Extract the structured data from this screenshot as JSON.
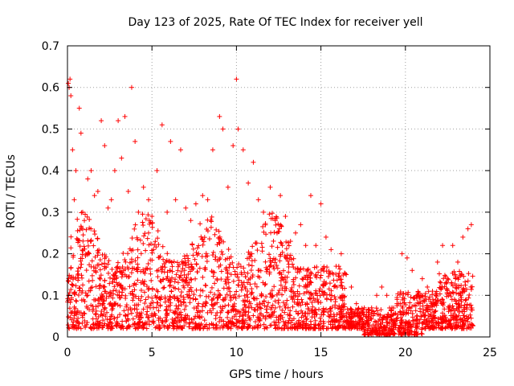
{
  "chart_data": {
    "type": "scatter",
    "title": "Day 123 of 2025, Rate Of TEC Index for receiver yell",
    "xlabel": "GPS time / hours",
    "ylabel": "ROTI / TECUs",
    "xlim": [
      0,
      25
    ],
    "ylim": [
      0,
      0.7
    ],
    "xticks": [
      0,
      5,
      10,
      15,
      20,
      25
    ],
    "xtick_labels": [
      "0",
      "5",
      "10",
      "15",
      "20",
      "25"
    ],
    "yticks": [
      0,
      0.1,
      0.2,
      0.3,
      0.4,
      0.5,
      0.6,
      0.7
    ],
    "ytick_labels": [
      "0",
      "0.1",
      "0.2",
      "0.3",
      "0.4",
      "0.5",
      "0.6",
      "0.7"
    ],
    "grid": true,
    "marker": "plus",
    "color": "#ff0000",
    "series": [
      {
        "name": "ROTI",
        "x": [
          0.05,
          0.1,
          0.15,
          0.2,
          0.3,
          0.4,
          0.5,
          0.7,
          0.8,
          0.9,
          1.0,
          1.2,
          1.4,
          1.6,
          1.8,
          2.0,
          2.2,
          2.4,
          2.6,
          2.8,
          3.0,
          3.2,
          3.4,
          3.6,
          3.8,
          4.0,
          4.2,
          4.5,
          4.8,
          5.0,
          5.3,
          5.6,
          5.9,
          6.1,
          6.4,
          6.7,
          7.0,
          7.3,
          7.6,
          8.0,
          8.3,
          8.6,
          9.0,
          9.2,
          9.5,
          9.8,
          10.0,
          10.1,
          10.4,
          10.7,
          11.0,
          11.3,
          11.6,
          12.0,
          12.3,
          12.6,
          12.9,
          13.2,
          13.5,
          13.8,
          14.1,
          14.4,
          14.7,
          15.0,
          15.3,
          15.6,
          15.9,
          16.2,
          16.5,
          16.8,
          17.1,
          17.4,
          17.7,
          18.0,
          18.3,
          18.6,
          18.9,
          19.2,
          19.5,
          19.8,
          20.1,
          20.4,
          20.7,
          21.0,
          21.3,
          21.6,
          21.9,
          22.2,
          22.5,
          22.8,
          23.1,
          23.4,
          23.7,
          23.9
        ],
        "y": [
          0.61,
          0.6,
          0.62,
          0.58,
          0.45,
          0.33,
          0.4,
          0.55,
          0.49,
          0.3,
          0.28,
          0.38,
          0.4,
          0.34,
          0.35,
          0.52,
          0.46,
          0.31,
          0.33,
          0.4,
          0.52,
          0.43,
          0.53,
          0.35,
          0.6,
          0.47,
          0.3,
          0.36,
          0.33,
          0.29,
          0.4,
          0.51,
          0.3,
          0.47,
          0.33,
          0.45,
          0.31,
          0.28,
          0.32,
          0.34,
          0.33,
          0.45,
          0.53,
          0.5,
          0.36,
          0.46,
          0.62,
          0.5,
          0.45,
          0.37,
          0.42,
          0.33,
          0.3,
          0.36,
          0.28,
          0.34,
          0.29,
          0.23,
          0.25,
          0.27,
          0.22,
          0.34,
          0.22,
          0.32,
          0.24,
          0.21,
          0.17,
          0.2,
          0.15,
          0.12,
          0.08,
          0.06,
          0.06,
          0.07,
          0.1,
          0.12,
          0.1,
          0.07,
          0.08,
          0.2,
          0.19,
          0.16,
          0.1,
          0.14,
          0.12,
          0.11,
          0.18,
          0.22,
          0.14,
          0.22,
          0.18,
          0.24,
          0.26,
          0.27
        ]
      }
    ],
    "density_band": "dense cloud of points roughly 0.02–0.25 ROTI throughout 0–24 h, lower (0.01–0.08) from ~17 to ~21 h"
  }
}
